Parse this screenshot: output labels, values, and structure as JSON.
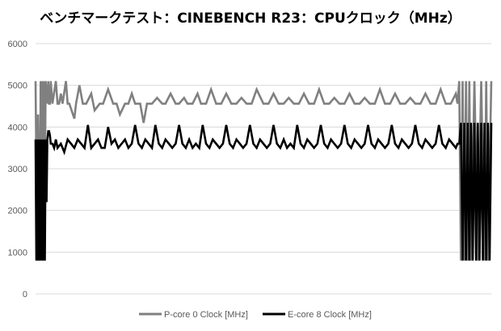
{
  "chart_data": {
    "type": "line",
    "title": "ベンチマークテスト：CINEBENCH R23：CPUクロック（MHz）",
    "xlabel": "",
    "ylabel": "",
    "ylim": [
      0,
      6000
    ],
    "yticks": [
      0,
      1000,
      2000,
      3000,
      4000,
      5000,
      6000
    ],
    "grid": true,
    "legend": "bottom",
    "series": [
      {
        "name": "P-core 0 Clock [MHz]",
        "color": "#808080",
        "baseline": 4560,
        "x": [
          0,
          2,
          3,
          5,
          6,
          7,
          8,
          9,
          10,
          11,
          12,
          13,
          14,
          15,
          16,
          17,
          18,
          20,
          24,
          26,
          28,
          30,
          32,
          36,
          38,
          40,
          46,
          48,
          52,
          56,
          60,
          66,
          70,
          76,
          80,
          86,
          92,
          96,
          100,
          106,
          110,
          114,
          118,
          124,
          128,
          132,
          138,
          144,
          150,
          154,
          160,
          166,
          170,
          176,
          180,
          186,
          192,
          196,
          202,
          208,
          214,
          220,
          226,
          232,
          238,
          244,
          250,
          256,
          262,
          270,
          276,
          282,
          288,
          294,
          300,
          306,
          312,
          318,
          324,
          330,
          336,
          342,
          348,
          354,
          360,
          366,
          372,
          378,
          384,
          390,
          396,
          402,
          408,
          414,
          420,
          426,
          432,
          438,
          444,
          450,
          456,
          462,
          468,
          474,
          480,
          486,
          492,
          498,
          500,
          502,
          504,
          506,
          508,
          510,
          512,
          514,
          516,
          520,
          524,
          528,
          532,
          534,
          536,
          540
        ],
        "values": [
          5100,
          800,
          4300,
          800,
          5100,
          1700,
          5100,
          800,
          5100,
          2500,
          5100,
          4800,
          4560,
          5100,
          4560,
          4560,
          5100,
          4560,
          5100,
          4560,
          4560,
          4800,
          4560,
          5100,
          4560,
          4560,
          4200,
          4560,
          5000,
          4560,
          4560,
          4800,
          4400,
          4560,
          4560,
          4900,
          4560,
          4560,
          4300,
          4560,
          4560,
          4800,
          4560,
          4560,
          4100,
          4560,
          4560,
          4700,
          4560,
          4560,
          4800,
          4560,
          4560,
          4700,
          4560,
          4560,
          4800,
          4560,
          4560,
          4900,
          4560,
          4560,
          4800,
          4560,
          4560,
          4700,
          4560,
          4560,
          4900,
          4560,
          4560,
          4800,
          4560,
          4560,
          4700,
          4560,
          4560,
          4800,
          4560,
          4560,
          4900,
          4560,
          4560,
          4700,
          4560,
          4560,
          4800,
          4560,
          4560,
          4700,
          4560,
          4560,
          4900,
          4560,
          4560,
          4800,
          4560,
          4560,
          4700,
          4560,
          4560,
          4800,
          4560,
          4560,
          4900,
          4560,
          4560,
          4800,
          4560,
          5100,
          800,
          5100,
          800,
          5100,
          800,
          5100,
          800,
          5100,
          800,
          5100,
          800,
          5100,
          800,
          5100
        ]
      },
      {
        "name": "E-core 8 Clock [MHz]",
        "color": "#000000",
        "baseline": 3570,
        "x": [
          0,
          1,
          2,
          3,
          4,
          5,
          6,
          7,
          8,
          9,
          10,
          11,
          12,
          13,
          14,
          15,
          16,
          17,
          18,
          20,
          22,
          24,
          26,
          30,
          34,
          38,
          42,
          46,
          50,
          54,
          58,
          62,
          66,
          70,
          74,
          78,
          82,
          86,
          90,
          94,
          98,
          102,
          106,
          110,
          114,
          118,
          122,
          126,
          130,
          134,
          138,
          142,
          146,
          150,
          154,
          158,
          162,
          166,
          170,
          174,
          178,
          182,
          186,
          190,
          194,
          198,
          202,
          206,
          210,
          214,
          218,
          222,
          226,
          230,
          234,
          238,
          242,
          246,
          250,
          254,
          258,
          262,
          266,
          270,
          274,
          278,
          282,
          286,
          290,
          294,
          298,
          302,
          306,
          310,
          314,
          318,
          322,
          326,
          330,
          334,
          338,
          342,
          346,
          350,
          354,
          358,
          362,
          366,
          370,
          374,
          378,
          382,
          386,
          390,
          394,
          398,
          402,
          406,
          410,
          414,
          418,
          422,
          426,
          430,
          434,
          438,
          442,
          446,
          450,
          454,
          458,
          462,
          466,
          470,
          474,
          478,
          482,
          486,
          490,
          494,
          498,
          500,
          502,
          504,
          506,
          508,
          510,
          512,
          514,
          516,
          518,
          520,
          522,
          524,
          526,
          528,
          530,
          532,
          534,
          536,
          538,
          540
        ],
        "values": [
          3700,
          800,
          3700,
          800,
          3700,
          800,
          3700,
          800,
          3700,
          800,
          3700,
          800,
          3700,
          2200,
          3700,
          3900,
          3900,
          3800,
          3600,
          3600,
          3500,
          3700,
          3500,
          3600,
          3400,
          3700,
          3600,
          3500,
          3700,
          3600,
          3500,
          4050,
          3500,
          3600,
          3700,
          3500,
          3500,
          4000,
          3600,
          3700,
          3500,
          3600,
          3700,
          3500,
          3600,
          4050,
          3600,
          3500,
          3700,
          3600,
          3500,
          4050,
          3600,
          3500,
          3700,
          3600,
          3500,
          3600,
          4050,
          3600,
          3500,
          3700,
          3500,
          3600,
          3500,
          4050,
          3600,
          3500,
          3700,
          3600,
          3500,
          3600,
          4050,
          3600,
          3500,
          3700,
          3600,
          3500,
          3600,
          4050,
          3600,
          3500,
          3700,
          3600,
          3500,
          3600,
          4050,
          3600,
          3500,
          3700,
          3500,
          3600,
          3500,
          4050,
          3600,
          3500,
          3700,
          3600,
          3500,
          3600,
          4050,
          3600,
          3500,
          3700,
          3600,
          3500,
          3600,
          4050,
          3600,
          3500,
          3700,
          3600,
          3500,
          3600,
          4050,
          3600,
          3500,
          3700,
          3600,
          3500,
          3600,
          4050,
          3600,
          3500,
          3700,
          3600,
          3500,
          3600,
          4050,
          3600,
          3500,
          3700,
          3600,
          3500,
          3600,
          4050,
          3600,
          3500,
          3700,
          3600,
          3500,
          3600,
          3600,
          4100,
          800,
          4100,
          800,
          4100,
          800,
          4100,
          800,
          4100,
          800,
          4100,
          800,
          4100,
          800,
          4100,
          800,
          4100,
          800,
          4100
        ]
      }
    ]
  }
}
